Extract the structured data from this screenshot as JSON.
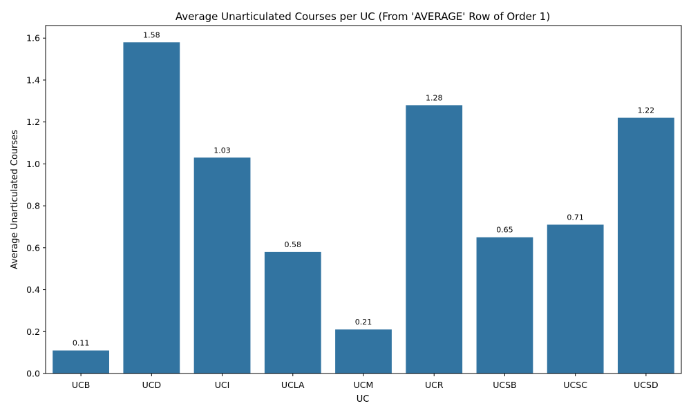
{
  "chart_data": {
    "type": "bar",
    "title": "Average Unarticulated Courses per UC (From 'AVERAGE' Row of Order 1)",
    "xlabel": "UC",
    "ylabel": "Average Unarticulated Courses",
    "categories": [
      "UCB",
      "UCD",
      "UCI",
      "UCLA",
      "UCM",
      "UCR",
      "UCSB",
      "UCSC",
      "UCSD"
    ],
    "values": [
      0.11,
      1.58,
      1.03,
      0.58,
      0.21,
      1.28,
      0.65,
      0.71,
      1.22
    ],
    "value_labels": [
      "0.11",
      "1.58",
      "1.03",
      "0.58",
      "0.21",
      "1.28",
      "0.65",
      "0.71",
      "1.22"
    ],
    "ylim": [
      0,
      1.66
    ],
    "yticks": [
      0.0,
      0.2,
      0.4,
      0.6,
      0.8,
      1.0,
      1.2,
      1.4,
      1.6
    ],
    "ytick_labels": [
      "0.0",
      "0.2",
      "0.4",
      "0.6",
      "0.8",
      "1.0",
      "1.2",
      "1.4",
      "1.6"
    ],
    "bar_color": "#3274a1",
    "grid": false,
    "legend": "none"
  }
}
